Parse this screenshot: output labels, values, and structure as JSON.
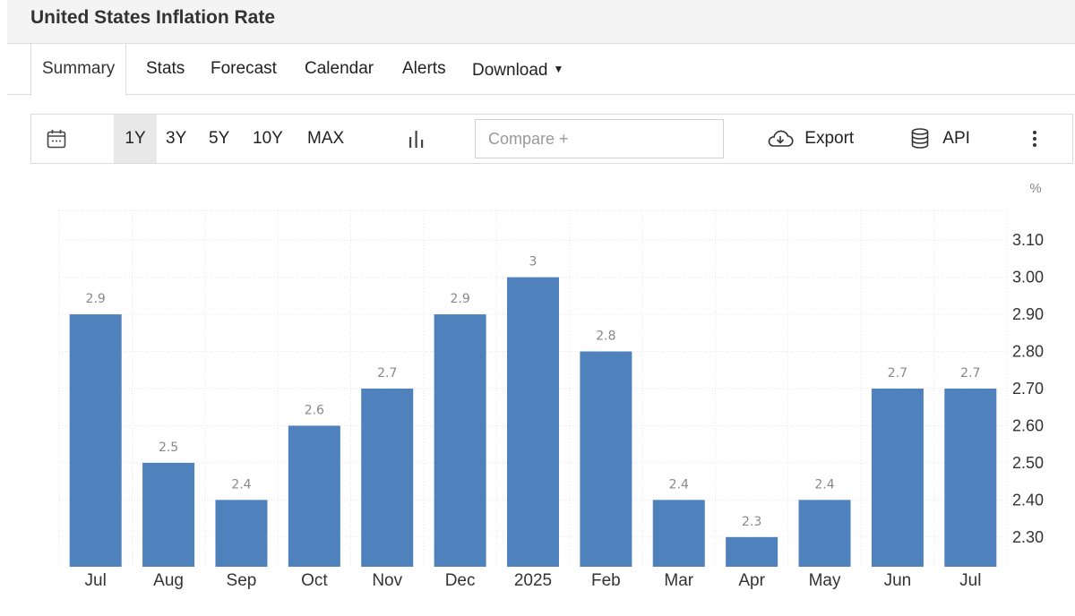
{
  "page": {
    "title": "United States Inflation Rate"
  },
  "tabs": [
    {
      "label": "Summary"
    },
    {
      "label": "Stats"
    },
    {
      "label": "Forecast"
    },
    {
      "label": "Calendar"
    },
    {
      "label": "Alerts"
    },
    {
      "label": "Download"
    }
  ],
  "toolbar": {
    "ranges": [
      "1Y",
      "3Y",
      "5Y",
      "10Y",
      "MAX"
    ],
    "active_range": "1Y",
    "compare_placeholder": "Compare +",
    "export_label": "Export",
    "api_label": "API"
  },
  "icons": {
    "calendar": "calendar-icon",
    "chart_type": "bar-chart-icon",
    "export": "cloud-download-icon",
    "api": "database-icon",
    "more": "kebab-menu-icon"
  },
  "chart_data": {
    "type": "bar",
    "categories": [
      "Jul",
      "Aug",
      "Sep",
      "Oct",
      "Nov",
      "Dec",
      "2025",
      "Feb",
      "Mar",
      "Apr",
      "May",
      "Jun",
      "Jul"
    ],
    "values": [
      2.9,
      2.5,
      2.4,
      2.6,
      2.7,
      2.9,
      3,
      2.8,
      2.4,
      2.3,
      2.4,
      2.7,
      2.7
    ],
    "data_labels": [
      "2.9",
      "2.5",
      "2.4",
      "2.6",
      "2.7",
      "2.9",
      "3",
      "2.8",
      "2.4",
      "2.3",
      "2.4",
      "2.7",
      "2.7"
    ],
    "title": "",
    "xlabel": "",
    "ylabel": "",
    "unit": "%",
    "ylim": [
      2.22,
      3.18
    ],
    "yticks": [
      2.3,
      2.4,
      2.5,
      2.6,
      2.7,
      2.8,
      2.9,
      3.0,
      3.1
    ],
    "ytick_labels": [
      "2.30",
      "2.40",
      "2.50",
      "2.60",
      "2.70",
      "2.80",
      "2.90",
      "3.00",
      "3.10"
    ],
    "y_axis_position": "right",
    "bar_color": "#4f81bd",
    "grid": true
  }
}
